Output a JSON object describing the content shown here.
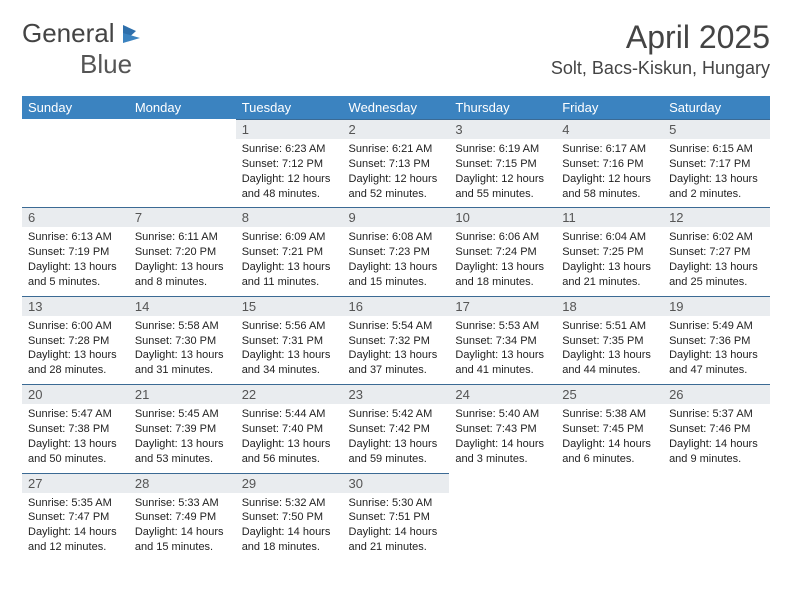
{
  "brand": {
    "line1": "General",
    "line2": "Blue"
  },
  "header": {
    "month_title": "April 2025",
    "location": "Solt, Bacs-Kiskun, Hungary"
  },
  "colors": {
    "header_bg": "#3b83c0",
    "header_text": "#ffffff",
    "daynum_bg": "#e9ecef",
    "daynum_text": "#555555",
    "rule": "#3b6a94",
    "body_text": "#222222",
    "page_bg": "#ffffff",
    "title_text": "#444444"
  },
  "weekdays": [
    "Sunday",
    "Monday",
    "Tuesday",
    "Wednesday",
    "Thursday",
    "Friday",
    "Saturday"
  ],
  "weeks": [
    [
      null,
      null,
      {
        "n": "1",
        "sr": "Sunrise: 6:23 AM",
        "ss": "Sunset: 7:12 PM",
        "dl": "Daylight: 12 hours and 48 minutes."
      },
      {
        "n": "2",
        "sr": "Sunrise: 6:21 AM",
        "ss": "Sunset: 7:13 PM",
        "dl": "Daylight: 12 hours and 52 minutes."
      },
      {
        "n": "3",
        "sr": "Sunrise: 6:19 AM",
        "ss": "Sunset: 7:15 PM",
        "dl": "Daylight: 12 hours and 55 minutes."
      },
      {
        "n": "4",
        "sr": "Sunrise: 6:17 AM",
        "ss": "Sunset: 7:16 PM",
        "dl": "Daylight: 12 hours and 58 minutes."
      },
      {
        "n": "5",
        "sr": "Sunrise: 6:15 AM",
        "ss": "Sunset: 7:17 PM",
        "dl": "Daylight: 13 hours and 2 minutes."
      }
    ],
    [
      {
        "n": "6",
        "sr": "Sunrise: 6:13 AM",
        "ss": "Sunset: 7:19 PM",
        "dl": "Daylight: 13 hours and 5 minutes."
      },
      {
        "n": "7",
        "sr": "Sunrise: 6:11 AM",
        "ss": "Sunset: 7:20 PM",
        "dl": "Daylight: 13 hours and 8 minutes."
      },
      {
        "n": "8",
        "sr": "Sunrise: 6:09 AM",
        "ss": "Sunset: 7:21 PM",
        "dl": "Daylight: 13 hours and 11 minutes."
      },
      {
        "n": "9",
        "sr": "Sunrise: 6:08 AM",
        "ss": "Sunset: 7:23 PM",
        "dl": "Daylight: 13 hours and 15 minutes."
      },
      {
        "n": "10",
        "sr": "Sunrise: 6:06 AM",
        "ss": "Sunset: 7:24 PM",
        "dl": "Daylight: 13 hours and 18 minutes."
      },
      {
        "n": "11",
        "sr": "Sunrise: 6:04 AM",
        "ss": "Sunset: 7:25 PM",
        "dl": "Daylight: 13 hours and 21 minutes."
      },
      {
        "n": "12",
        "sr": "Sunrise: 6:02 AM",
        "ss": "Sunset: 7:27 PM",
        "dl": "Daylight: 13 hours and 25 minutes."
      }
    ],
    [
      {
        "n": "13",
        "sr": "Sunrise: 6:00 AM",
        "ss": "Sunset: 7:28 PM",
        "dl": "Daylight: 13 hours and 28 minutes."
      },
      {
        "n": "14",
        "sr": "Sunrise: 5:58 AM",
        "ss": "Sunset: 7:30 PM",
        "dl": "Daylight: 13 hours and 31 minutes."
      },
      {
        "n": "15",
        "sr": "Sunrise: 5:56 AM",
        "ss": "Sunset: 7:31 PM",
        "dl": "Daylight: 13 hours and 34 minutes."
      },
      {
        "n": "16",
        "sr": "Sunrise: 5:54 AM",
        "ss": "Sunset: 7:32 PM",
        "dl": "Daylight: 13 hours and 37 minutes."
      },
      {
        "n": "17",
        "sr": "Sunrise: 5:53 AM",
        "ss": "Sunset: 7:34 PM",
        "dl": "Daylight: 13 hours and 41 minutes."
      },
      {
        "n": "18",
        "sr": "Sunrise: 5:51 AM",
        "ss": "Sunset: 7:35 PM",
        "dl": "Daylight: 13 hours and 44 minutes."
      },
      {
        "n": "19",
        "sr": "Sunrise: 5:49 AM",
        "ss": "Sunset: 7:36 PM",
        "dl": "Daylight: 13 hours and 47 minutes."
      }
    ],
    [
      {
        "n": "20",
        "sr": "Sunrise: 5:47 AM",
        "ss": "Sunset: 7:38 PM",
        "dl": "Daylight: 13 hours and 50 minutes."
      },
      {
        "n": "21",
        "sr": "Sunrise: 5:45 AM",
        "ss": "Sunset: 7:39 PM",
        "dl": "Daylight: 13 hours and 53 minutes."
      },
      {
        "n": "22",
        "sr": "Sunrise: 5:44 AM",
        "ss": "Sunset: 7:40 PM",
        "dl": "Daylight: 13 hours and 56 minutes."
      },
      {
        "n": "23",
        "sr": "Sunrise: 5:42 AM",
        "ss": "Sunset: 7:42 PM",
        "dl": "Daylight: 13 hours and 59 minutes."
      },
      {
        "n": "24",
        "sr": "Sunrise: 5:40 AM",
        "ss": "Sunset: 7:43 PM",
        "dl": "Daylight: 14 hours and 3 minutes."
      },
      {
        "n": "25",
        "sr": "Sunrise: 5:38 AM",
        "ss": "Sunset: 7:45 PM",
        "dl": "Daylight: 14 hours and 6 minutes."
      },
      {
        "n": "26",
        "sr": "Sunrise: 5:37 AM",
        "ss": "Sunset: 7:46 PM",
        "dl": "Daylight: 14 hours and 9 minutes."
      }
    ],
    [
      {
        "n": "27",
        "sr": "Sunrise: 5:35 AM",
        "ss": "Sunset: 7:47 PM",
        "dl": "Daylight: 14 hours and 12 minutes."
      },
      {
        "n": "28",
        "sr": "Sunrise: 5:33 AM",
        "ss": "Sunset: 7:49 PM",
        "dl": "Daylight: 14 hours and 15 minutes."
      },
      {
        "n": "29",
        "sr": "Sunrise: 5:32 AM",
        "ss": "Sunset: 7:50 PM",
        "dl": "Daylight: 14 hours and 18 minutes."
      },
      {
        "n": "30",
        "sr": "Sunrise: 5:30 AM",
        "ss": "Sunset: 7:51 PM",
        "dl": "Daylight: 14 hours and 21 minutes."
      },
      null,
      null,
      null
    ]
  ]
}
